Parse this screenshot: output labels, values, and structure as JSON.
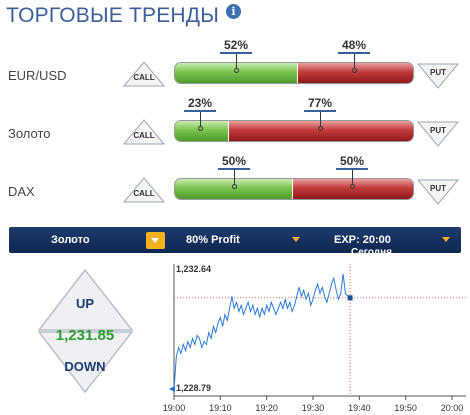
{
  "header": {
    "title": "ТОРГОВЫЕ ТРЕНДЫ",
    "info_icon": "info-icon"
  },
  "trends": [
    {
      "asset": "EUR/USD",
      "call": "CALL",
      "put": "PUT",
      "call_pct": "52%",
      "put_pct": "48%",
      "call_share": 0.52
    },
    {
      "asset": "Золото",
      "call": "CALL",
      "put": "PUT",
      "call_pct": "23%",
      "put_pct": "77%",
      "call_share": 0.23
    },
    {
      "asset": "DAX",
      "call": "CALL",
      "put": "PUT",
      "call_pct": "50%",
      "put_pct": "50%",
      "call_share": 0.5
    }
  ],
  "toolbar": {
    "asset": "Золото",
    "profit": "80%  Profit",
    "expiry": "EXP:  20:00",
    "expiry_sub": "Сегодня"
  },
  "trade": {
    "up_label": "UP",
    "down_label": "DOWN",
    "current_price": "1,231.85"
  },
  "colors": {
    "title": "#3a5f9a",
    "green": "#4e9c2b",
    "red": "#c43a3a",
    "toolbar": "#0f2750",
    "accent": "#f6b21e"
  },
  "chart_data": {
    "type": "line",
    "high_label": "1,232.64",
    "low_label": "1,228.79",
    "ylim": [
      1228.79,
      1232.64
    ],
    "x_ticks": [
      "19:00",
      "19:10",
      "19:20",
      "19:30",
      "19:40",
      "19:50",
      "20:00"
    ],
    "series": [
      {
        "x": [
          0,
          0.5,
          1,
          1.5,
          2,
          2.5,
          3,
          3.5,
          4,
          4.5,
          5,
          5.5,
          6,
          6.5,
          7,
          7.5,
          8,
          8.5,
          9,
          9.5,
          10,
          10.5,
          11,
          11.5,
          12,
          12.5,
          13,
          13.5,
          14,
          14.5,
          15,
          15.5,
          16,
          16.5,
          17,
          17.5,
          18,
          18.5,
          19,
          19.5,
          20,
          20.5,
          21,
          21.5,
          22,
          22.5,
          23,
          23.5,
          24,
          24.5,
          25,
          25.5,
          26,
          26.5,
          27,
          27.5,
          28,
          28.5,
          29,
          29.5,
          30,
          30.5,
          31,
          31.5,
          32,
          32.5,
          33,
          33.5,
          34,
          34.5,
          35,
          35.5,
          36,
          36.5,
          37,
          37.5,
          38
        ],
        "y": [
          1228.79,
          1229.9,
          1230.2,
          1230.0,
          1230.3,
          1230.1,
          1230.4,
          1230.2,
          1230.5,
          1230.3,
          1230.6,
          1230.5,
          1230.2,
          1230.4,
          1230.3,
          1230.7,
          1230.5,
          1230.9,
          1230.7,
          1231.0,
          1231.2,
          1230.9,
          1231.3,
          1231.1,
          1231.5,
          1231.9,
          1231.5,
          1231.7,
          1231.4,
          1231.6,
          1231.3,
          1231.5,
          1231.7,
          1231.4,
          1231.6,
          1231.3,
          1231.5,
          1231.2,
          1231.5,
          1231.3,
          1231.6,
          1231.4,
          1231.7,
          1231.5,
          1231.3,
          1231.5,
          1231.7,
          1231.5,
          1231.8,
          1231.5,
          1231.7,
          1231.4,
          1231.6,
          1231.9,
          1232.2,
          1231.9,
          1232.1,
          1231.8,
          1232.0,
          1231.6,
          1231.8,
          1232.1,
          1232.3,
          1232.0,
          1232.2,
          1231.9,
          1231.7,
          1232.0,
          1232.3,
          1232.5,
          1232.1,
          1231.8,
          1232.0,
          1232.64,
          1232.0,
          1231.9,
          1231.85
        ]
      }
    ],
    "grid": false
  }
}
